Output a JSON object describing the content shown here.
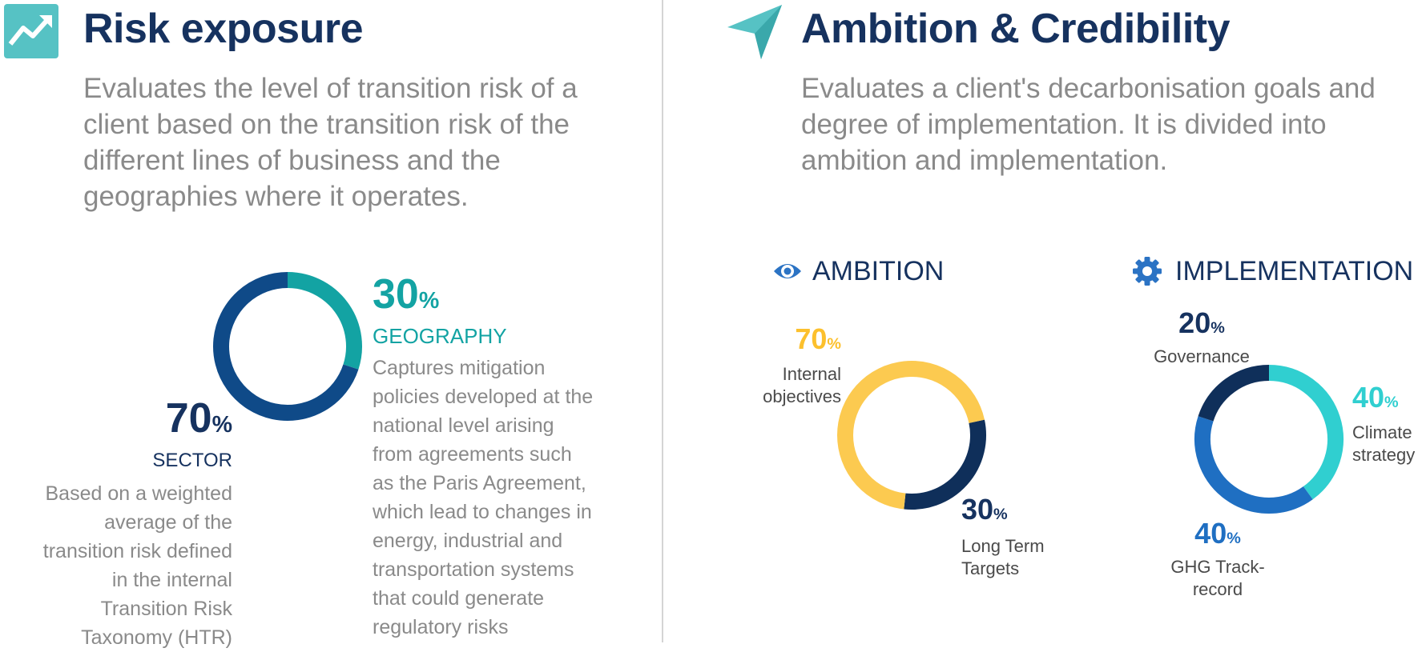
{
  "colors": {
    "navy": "#16325f",
    "dark_blue": "#0f4a88",
    "teal": "#13a3a3",
    "yellow": "#fcca50",
    "dark_navy": "#0f2f5a",
    "cyan": "#30cfd0",
    "mid_blue": "#1f6fc2",
    "icon_teal": "#56c2c4",
    "icon_blue": "#2b73c4",
    "grey_text": "#8a8a8a"
  },
  "risk": {
    "title": "Risk exposure",
    "icon": "trend-up-icon",
    "description": "Evaluates the level of transition risk of a client based on the transition risk of the different lines of business and the geographies where it operates.",
    "sector": {
      "value": "70",
      "unit": "%",
      "label": "SECTOR",
      "text": "Based on a weighted average of the transition risk defined in the internal Transition Risk Taxonomy (HTR)"
    },
    "geography": {
      "value": "30",
      "unit": "%",
      "label": "GEOGRAPHY",
      "text": "Captures mitigation policies developed at the national level arising from agreements such as the Paris Agreement, which lead to changes in energy, industrial and transportation systems that could generate regulatory risks"
    }
  },
  "ambition_credibility": {
    "title": "Ambition & Credibility",
    "icon": "paper-plane-icon",
    "description": "Evaluates a client's decarbonisation goals and degree of implementation. It is divided into ambition and implementation.",
    "ambition": {
      "title": "AMBITION",
      "icon": "eye-icon",
      "internal": {
        "value": "70",
        "unit": "%",
        "label": "Internal objectives"
      },
      "long_term": {
        "value": "30",
        "unit": "%",
        "label": "Long Term Targets"
      }
    },
    "implementation": {
      "title": "IMPLEMENTATION",
      "icon": "gear-icon",
      "governance": {
        "value": "20",
        "unit": "%",
        "label": "Governance"
      },
      "climate": {
        "value": "40",
        "unit": "%",
        "label": "Climate strategy"
      },
      "ghg": {
        "value": "40",
        "unit": "%",
        "label": "GHG Track-record"
      }
    }
  },
  "chart_data": [
    {
      "type": "pie",
      "categories": [
        "SECTOR",
        "GEOGRAPHY"
      ],
      "values": [
        70,
        30
      ],
      "colors": [
        "#0f4a88",
        "#13a3a3"
      ]
    },
    {
      "type": "pie",
      "categories": [
        "Internal objectives",
        "Long Term Targets"
      ],
      "values": [
        70,
        30
      ],
      "colors": [
        "#fcca50",
        "#0f2f5a"
      ]
    },
    {
      "type": "pie",
      "categories": [
        "Climate strategy",
        "GHG Track-record",
        "Governance"
      ],
      "values": [
        40,
        40,
        20
      ],
      "colors": [
        "#30cfd0",
        "#1f6fc2",
        "#0f2f5a"
      ]
    }
  ]
}
